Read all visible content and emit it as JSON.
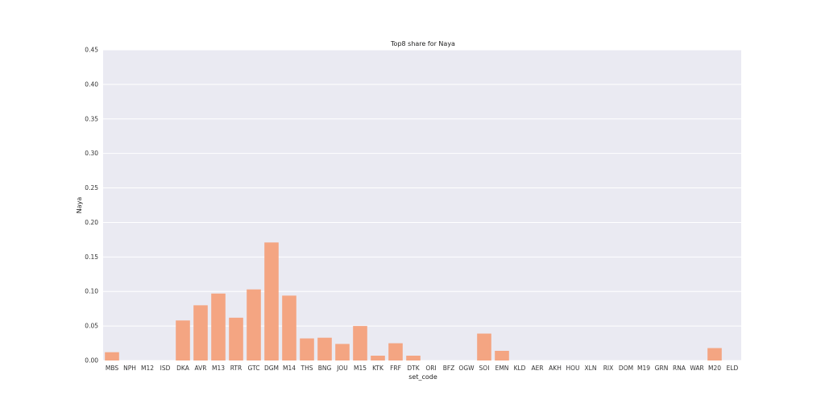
{
  "chart_data": {
    "type": "bar",
    "title": "Top8 share for Naya",
    "xlabel": "set_code",
    "ylabel": "Naya",
    "ylim": [
      0,
      0.45
    ],
    "yticks": [
      "0.00",
      "0.05",
      "0.10",
      "0.15",
      "0.20",
      "0.25",
      "0.30",
      "0.35",
      "0.40",
      "0.45"
    ],
    "grid": true,
    "bar_color": "#F4A582",
    "background_color": "#EAEAF2",
    "categories": [
      "MBS",
      "NPH",
      "M12",
      "ISD",
      "DKA",
      "AVR",
      "M13",
      "RTR",
      "GTC",
      "DGM",
      "M14",
      "THS",
      "BNG",
      "JOU",
      "M15",
      "KTK",
      "FRF",
      "DTK",
      "ORI",
      "BFZ",
      "OGW",
      "SOI",
      "EMN",
      "KLD",
      "AER",
      "AKH",
      "HOU",
      "XLN",
      "RIX",
      "DOM",
      "M19",
      "GRN",
      "RNA",
      "WAR",
      "M20",
      "ELD"
    ],
    "values": [
      0.012,
      0,
      0,
      0,
      0.058,
      0.08,
      0.097,
      0.062,
      0.103,
      0.171,
      0.094,
      0.032,
      0.033,
      0.024,
      0.05,
      0.007,
      0.025,
      0.007,
      0,
      0,
      0,
      0.039,
      0.014,
      0,
      0,
      0,
      0,
      0,
      0,
      0,
      0,
      0,
      0,
      0,
      0.018,
      0
    ]
  }
}
